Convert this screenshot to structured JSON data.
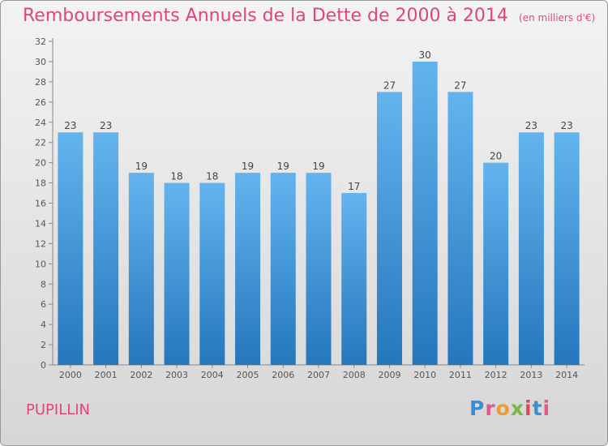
{
  "title": "Remboursements Annuels de la Dette de 2000 à 2014",
  "unit": "(en milliers d'€)",
  "commune": "PUPILLIN",
  "logo": {
    "text": "Proxiti",
    "colors": [
      "#3a8ed8",
      "#e05a8c",
      "#f29a2e",
      "#7ab648",
      "#e04a4a",
      "#3a8ed8",
      "#e05a8c"
    ]
  },
  "colors": {
    "bar_light": "#63b4ee",
    "bar_dark": "#2577bd",
    "accent": "#e0457a"
  },
  "chart_data": {
    "type": "bar",
    "categories": [
      "2000",
      "2001",
      "2002",
      "2003",
      "2004",
      "2005",
      "2006",
      "2007",
      "2008",
      "2009",
      "2010",
      "2011",
      "2012",
      "2013",
      "2014"
    ],
    "values": [
      23,
      23,
      19,
      18,
      18,
      19,
      19,
      19,
      17,
      27,
      30,
      27,
      20,
      23,
      23
    ],
    "ylim": [
      0,
      32
    ],
    "ytick_step": 2,
    "grid": false
  }
}
